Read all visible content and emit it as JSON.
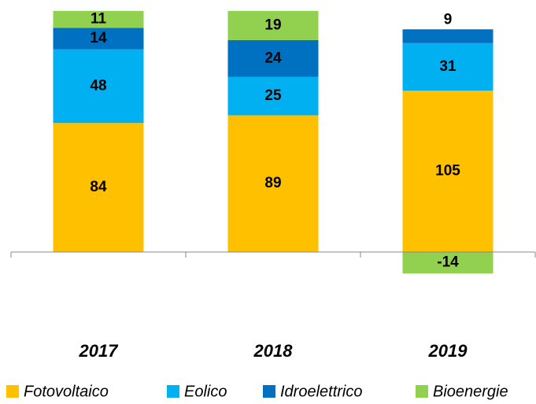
{
  "chart_data": {
    "type": "stacked_bar",
    "categories": [
      "2017",
      "2018",
      "2019"
    ],
    "series": [
      {
        "name": "Fotovoltaico",
        "color": "#FFC000",
        "values": [
          84,
          89,
          105
        ]
      },
      {
        "name": "Eolico",
        "color": "#00B0F0",
        "values": [
          48,
          25,
          31
        ]
      },
      {
        "name": "Idroelettrico",
        "color": "#0070C0",
        "values": [
          14,
          24,
          9
        ]
      },
      {
        "name": "Bioenergie",
        "color": "#92D050",
        "values": [
          11,
          19,
          -14
        ]
      }
    ],
    "ylim": [
      -60,
      160
    ],
    "legend": "bottom"
  }
}
